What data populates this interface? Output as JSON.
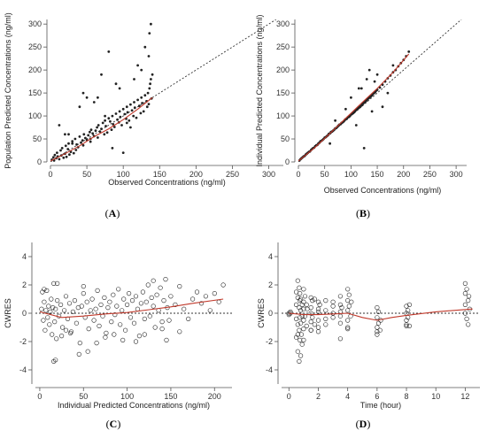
{
  "colors": {
    "points": "#222222",
    "smooth": "#c0392b",
    "axis": "#555555",
    "reference": "#333333"
  },
  "chart_data": [
    {
      "id": "A",
      "type": "scatter",
      "panel_label": "A",
      "marker": "filled",
      "xlabel": "Observed Concentrations (ng/ml)",
      "ylabel": "Population Predicted Concentrations (ng/ml)",
      "xlim": [
        0,
        320
      ],
      "ylim": [
        0,
        310
      ],
      "xticks": [
        0,
        50,
        100,
        150,
        200,
        250,
        300
      ],
      "yticks": [
        0,
        50,
        100,
        150,
        200,
        250,
        300
      ],
      "reference_line": "identity",
      "smooth": {
        "x": [
          0,
          20,
          40,
          60,
          80,
          100,
          120,
          140
        ],
        "y": [
          2,
          18,
          35,
          55,
          72,
          92,
          115,
          140
        ]
      },
      "x": [
        2,
        4,
        5,
        6,
        8,
        9,
        10,
        12,
        14,
        15,
        16,
        18,
        20,
        21,
        22,
        24,
        25,
        26,
        28,
        30,
        32,
        34,
        35,
        36,
        38,
        40,
        42,
        44,
        45,
        46,
        48,
        50,
        52,
        54,
        55,
        56,
        58,
        60,
        62,
        64,
        65,
        66,
        68,
        70,
        72,
        74,
        75,
        76,
        78,
        80,
        82,
        84,
        85,
        86,
        88,
        90,
        92,
        94,
        95,
        96,
        98,
        100,
        102,
        104,
        105,
        106,
        108,
        110,
        112,
        114,
        115,
        116,
        118,
        120,
        122,
        124,
        125,
        126,
        128,
        130,
        132,
        133,
        134,
        135,
        136,
        137,
        138,
        139,
        140,
        12,
        20,
        30,
        40,
        55,
        65,
        75,
        85,
        95,
        105,
        115,
        125,
        135,
        138,
        60,
        90,
        110,
        130,
        100,
        120,
        136,
        80,
        50,
        25,
        70,
        45
      ],
      "y": [
        5,
        10,
        3,
        15,
        8,
        20,
        12,
        6,
        25,
        14,
        30,
        9,
        18,
        35,
        11,
        28,
        40,
        16,
        22,
        45,
        19,
        50,
        26,
        38,
        32,
        55,
        42,
        47,
        36,
        60,
        52,
        48,
        58,
        65,
        44,
        70,
        62,
        56,
        68,
        75,
        53,
        80,
        66,
        72,
        85,
        60,
        90,
        78,
        64,
        95,
        88,
        70,
        100,
        82,
        76,
        105,
        92,
        86,
        110,
        98,
        80,
        115,
        104,
        94,
        120,
        108,
        90,
        125,
        112,
        100,
        130,
        118,
        96,
        135,
        122,
        106,
        140,
        128,
        110,
        145,
        132,
        120,
        150,
        126,
        160,
        170,
        180,
        138,
        190,
        80,
        60,
        40,
        120,
        50,
        140,
        100,
        30,
        160,
        85,
        180,
        200,
        230,
        300,
        130,
        170,
        75,
        250,
        20,
        210,
        280,
        240,
        140,
        60,
        190,
        150
      ],
      "series_name": ""
    },
    {
      "id": "B",
      "type": "scatter",
      "panel_label": "B",
      "marker": "filled",
      "xlabel": "Observed Concentrations (ng/ml)",
      "ylabel": "Individual Predicted Concentrations (ng/ml)",
      "xlim": [
        0,
        320
      ],
      "ylim": [
        0,
        310
      ],
      "xticks": [
        0,
        50,
        100,
        150,
        200,
        250,
        300
      ],
      "yticks": [
        0,
        50,
        100,
        150,
        200,
        250,
        300
      ],
      "reference_line": "identity",
      "smooth": {
        "x": [
          0,
          30,
          60,
          90,
          120,
          150,
          180,
          210
        ],
        "y": [
          2,
          30,
          62,
          95,
          128,
          160,
          195,
          235
        ]
      },
      "x": [
        2,
        4,
        6,
        8,
        10,
        12,
        14,
        16,
        18,
        20,
        22,
        24,
        26,
        28,
        30,
        32,
        34,
        36,
        38,
        40,
        42,
        44,
        46,
        48,
        50,
        52,
        54,
        56,
        58,
        60,
        62,
        64,
        66,
        68,
        70,
        72,
        74,
        76,
        78,
        80,
        82,
        84,
        86,
        88,
        90,
        92,
        94,
        96,
        98,
        100,
        102,
        104,
        106,
        108,
        110,
        112,
        114,
        116,
        118,
        120,
        122,
        124,
        126,
        128,
        130,
        132,
        134,
        136,
        138,
        140,
        142,
        144,
        146,
        148,
        150,
        155,
        160,
        165,
        170,
        175,
        180,
        185,
        190,
        195,
        200,
        205,
        210,
        100,
        120,
        140,
        160,
        130,
        110,
        90,
        70,
        150,
        170,
        125,
        135,
        60,
        180,
        115,
        145
      ],
      "y": [
        3,
        6,
        8,
        10,
        12,
        13,
        16,
        18,
        20,
        22,
        23,
        26,
        28,
        30,
        31,
        34,
        36,
        37,
        40,
        42,
        45,
        46,
        48,
        50,
        53,
        54,
        56,
        58,
        61,
        62,
        65,
        66,
        68,
        70,
        73,
        74,
        76,
        79,
        81,
        82,
        85,
        86,
        88,
        91,
        93,
        94,
        97,
        98,
        100,
        103,
        105,
        106,
        108,
        111,
        113,
        115,
        117,
        119,
        121,
        123,
        126,
        128,
        130,
        132,
        134,
        137,
        139,
        141,
        143,
        145,
        148,
        150,
        152,
        155,
        157,
        162,
        168,
        175,
        182,
        188,
        195,
        200,
        208,
        215,
        222,
        230,
        240,
        140,
        160,
        110,
        120,
        180,
        80,
        115,
        90,
        190,
        150,
        30,
        200,
        40,
        210,
        160,
        175
      ],
      "series_name": ""
    },
    {
      "id": "C",
      "type": "scatter",
      "panel_label": "C",
      "marker": "open",
      "xlabel": "Individual Predicted Concentrations (ng/ml)",
      "ylabel": "CWRES",
      "xlim": [
        -5,
        220
      ],
      "ylim": [
        -5,
        5
      ],
      "xticks": [
        0,
        50,
        100,
        150,
        200
      ],
      "yticks": [
        -4,
        -2,
        0,
        2,
        4
      ],
      "reference_line": "zero",
      "smooth": {
        "x": [
          0,
          25,
          50,
          75,
          100,
          125,
          150,
          175,
          210
        ],
        "y": [
          0.1,
          -0.3,
          -0.2,
          -0.05,
          0.05,
          0.25,
          0.45,
          0.7,
          1.0
        ]
      },
      "x": [
        2,
        3,
        4,
        5,
        6,
        7,
        8,
        9,
        10,
        11,
        12,
        13,
        14,
        15,
        16,
        17,
        18,
        19,
        20,
        22,
        24,
        26,
        28,
        30,
        32,
        34,
        36,
        38,
        40,
        42,
        44,
        46,
        48,
        50,
        52,
        54,
        56,
        58,
        60,
        62,
        64,
        66,
        68,
        70,
        72,
        74,
        76,
        78,
        80,
        82,
        84,
        86,
        88,
        90,
        92,
        94,
        96,
        98,
        100,
        102,
        104,
        106,
        108,
        110,
        112,
        114,
        116,
        118,
        120,
        122,
        124,
        126,
        128,
        130,
        132,
        134,
        136,
        138,
        140,
        142,
        144,
        146,
        148,
        150,
        155,
        160,
        165,
        170,
        175,
        180,
        185,
        190,
        195,
        200,
        205,
        210,
        16,
        18,
        45,
        35,
        55,
        25,
        30,
        65,
        95,
        120,
        145,
        160,
        140,
        110,
        85,
        75,
        50,
        20,
        5,
        130
      ],
      "y": [
        0.3,
        1.5,
        -0.5,
        0.8,
        -1.2,
        0.2,
        1.6,
        -0.3,
        0.5,
        -0.8,
        0.1,
        1.0,
        -1.5,
        0.4,
        2.1,
        -0.6,
        0.3,
        -1.8,
        0.9,
        -0.2,
        0.6,
        -1.0,
        0.2,
        1.2,
        -0.4,
        0.7,
        -1.3,
        0.1,
        0.9,
        -0.7,
        0.4,
        -2.1,
        0.5,
        1.4,
        -0.3,
        0.8,
        -1.1,
        0.2,
        1.0,
        -0.5,
        0.3,
        1.6,
        -0.9,
        0.6,
        -0.2,
        1.1,
        -1.4,
        0.4,
        0.8,
        -0.6,
        1.3,
        -0.1,
        0.5,
        1.7,
        -0.8,
        0.2,
        1.0,
        -1.2,
        0.6,
        1.4,
        -0.3,
        0.9,
        -0.7,
        1.2,
        0.3,
        -1.6,
        0.7,
        1.5,
        -0.4,
        0.8,
        2.0,
        -0.2,
        1.1,
        0.5,
        -1.0,
        1.3,
        0.2,
        1.8,
        -0.6,
        0.9,
        2.4,
        0.4,
        -0.5,
        1.2,
        0.6,
        1.9,
        0.3,
        -0.4,
        1.0,
        1.5,
        0.7,
        1.2,
        0.2,
        1.4,
        0.8,
        2.0,
        -3.4,
        -3.3,
        -2.9,
        -1.4,
        -2.7,
        -1.6,
        -1.2,
        -2.1,
        -1.9,
        -1.5,
        -1.9,
        -1.3,
        -1.1,
        -2.0,
        -1.5,
        -1.7,
        1.9,
        2.1,
        1.7,
        2.3
      ],
      "series_name": ""
    },
    {
      "id": "D",
      "type": "scatter",
      "panel_label": "D",
      "marker": "open",
      "xlabel": "Time (hour)",
      "ylabel": "CWRES",
      "xlim": [
        -0.5,
        13
      ],
      "ylim": [
        -5,
        5
      ],
      "xticks": [
        0,
        2,
        4,
        6,
        8,
        10,
        12
      ],
      "yticks": [
        -4,
        -2,
        0,
        2,
        4
      ],
      "reference_line": "zero",
      "smooth": {
        "x": [
          0,
          1,
          2,
          3,
          4,
          5,
          6,
          7,
          8,
          10,
          12.5
        ],
        "y": [
          0.0,
          -0.1,
          -0.1,
          -0.05,
          0.0,
          -0.3,
          -0.5,
          -0.3,
          -0.15,
          0.1,
          0.3
        ]
      },
      "x": [
        0.0,
        0.1,
        0.0,
        0.1,
        0.5,
        0.5,
        0.5,
        0.6,
        0.6,
        0.6,
        0.7,
        0.7,
        0.7,
        0.75,
        0.75,
        0.75,
        0.8,
        0.8,
        0.8,
        0.85,
        0.9,
        0.9,
        1.0,
        1.0,
        1.0,
        1.0,
        1.0,
        1.1,
        1.1,
        1.2,
        1.2,
        1.25,
        1.5,
        1.5,
        1.5,
        1.5,
        1.5,
        1.6,
        1.6,
        1.75,
        1.75,
        2.0,
        2.0,
        2.0,
        2.0,
        2.0,
        2.1,
        2.5,
        2.5,
        2.5,
        2.5,
        3.0,
        3.0,
        3.0,
        3.0,
        3.5,
        3.5,
        3.5,
        3.5,
        3.5,
        3.6,
        4.0,
        4.0,
        4.0,
        4.0,
        4.0,
        4.1,
        4.1,
        4.2,
        4.25,
        6.0,
        6.0,
        6.0,
        6.0,
        6.1,
        6.1,
        6.2,
        6.25,
        8.0,
        8.0,
        8.0,
        8.0,
        8.1,
        8.1,
        8.2,
        8.2,
        12.0,
        12.0,
        12.0,
        12.0,
        12.1,
        12.1,
        12.2,
        12.2,
        12.25,
        12.3,
        0.6,
        0.7,
        0.8,
        0.9,
        0.75,
        0.5,
        0.6,
        1.0,
        1.5,
        2.0,
        3.5,
        4.0,
        6.0,
        8.0
      ],
      "y": [
        0.0,
        0.1,
        -0.1,
        0.0,
        1.5,
        0.6,
        -0.4,
        2.3,
        1.1,
        -0.8,
        1.8,
        0.4,
        -1.2,
        0.9,
        -0.3,
        1.4,
        0.2,
        -0.7,
        1.0,
        -1.5,
        0.6,
        -0.2,
        1.7,
        0.8,
        -0.5,
        0.3,
        -1.1,
        1.2,
        -0.2,
        0.6,
        -0.9,
        0.3,
        1.1,
        0.4,
        -0.6,
        -1.2,
        0.0,
        0.9,
        -0.3,
        1.0,
        -0.8,
        0.8,
        0.3,
        -0.5,
        -1.0,
        0.1,
        0.6,
        0.9,
        0.2,
        -0.4,
        -0.8,
        0.5,
        0.0,
        -0.3,
        0.8,
        1.2,
        0.6,
        -0.2,
        -0.7,
        0.1,
        0.4,
        1.7,
        0.9,
        0.2,
        -0.5,
        -1.0,
        0.5,
        1.3,
        -0.2,
        0.8,
        0.4,
        -0.3,
        -1.0,
        -1.5,
        0.1,
        -0.7,
        -1.2,
        -0.5,
        0.5,
        0.0,
        -0.5,
        -0.8,
        0.2,
        -0.3,
        0.6,
        -0.9,
        2.1,
        1.4,
        0.6,
        0.0,
        1.7,
        -0.4,
        0.9,
        -0.8,
        1.2,
        0.3,
        -2.7,
        -3.4,
        -3.0,
        -2.2,
        -1.9,
        -1.7,
        -1.5,
        -1.9,
        -1.2,
        -1.3,
        -1.8,
        -1.1,
        -1.3,
        -0.9
      ],
      "series_name": ""
    }
  ]
}
